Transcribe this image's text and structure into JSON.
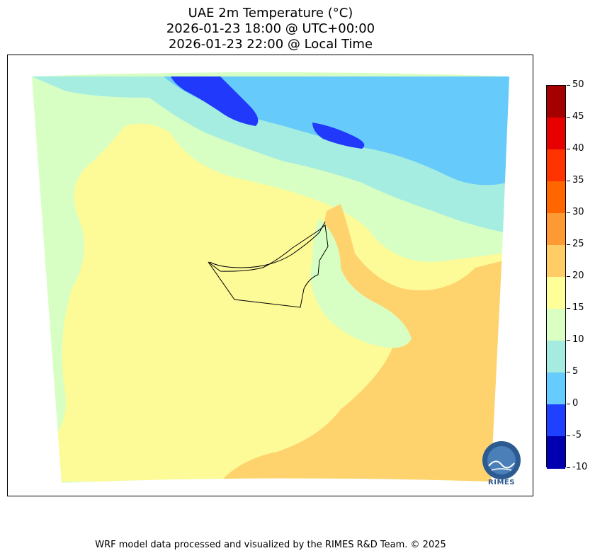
{
  "title": {
    "line1": "UAE 2m Temperature (°C)",
    "line2": "2026-01-23 18:00 @ UTC+00:00",
    "line3": "2026-01-23 22:00 @ Local Time"
  },
  "colorbar": {
    "ticks": [
      "50",
      "45",
      "40",
      "35",
      "30",
      "25",
      "20",
      "15",
      "10",
      "5",
      "0",
      "-5",
      "-10"
    ],
    "colors": [
      "#a50000",
      "#e60000",
      "#ff3300",
      "#ff6600",
      "#ff9933",
      "#ffcc66",
      "#ffff99",
      "#d9ffc2",
      "#a6ebe0",
      "#66ccff",
      "#2040ff",
      "#0000b0"
    ]
  },
  "map": {
    "palette": {
      "band_15_20": "#fdfa98",
      "band_10_15": "#d8ffc3",
      "band_5_10": "#a5ece1",
      "band_0_5": "#66cbfa",
      "band_m5_0": "#2139fb",
      "band_20_25": "#fed36e"
    }
  },
  "logo": {
    "text": "RIMES"
  },
  "footer": "WRF model data processed and visualized by the RIMES R&D Team. © 2025"
}
